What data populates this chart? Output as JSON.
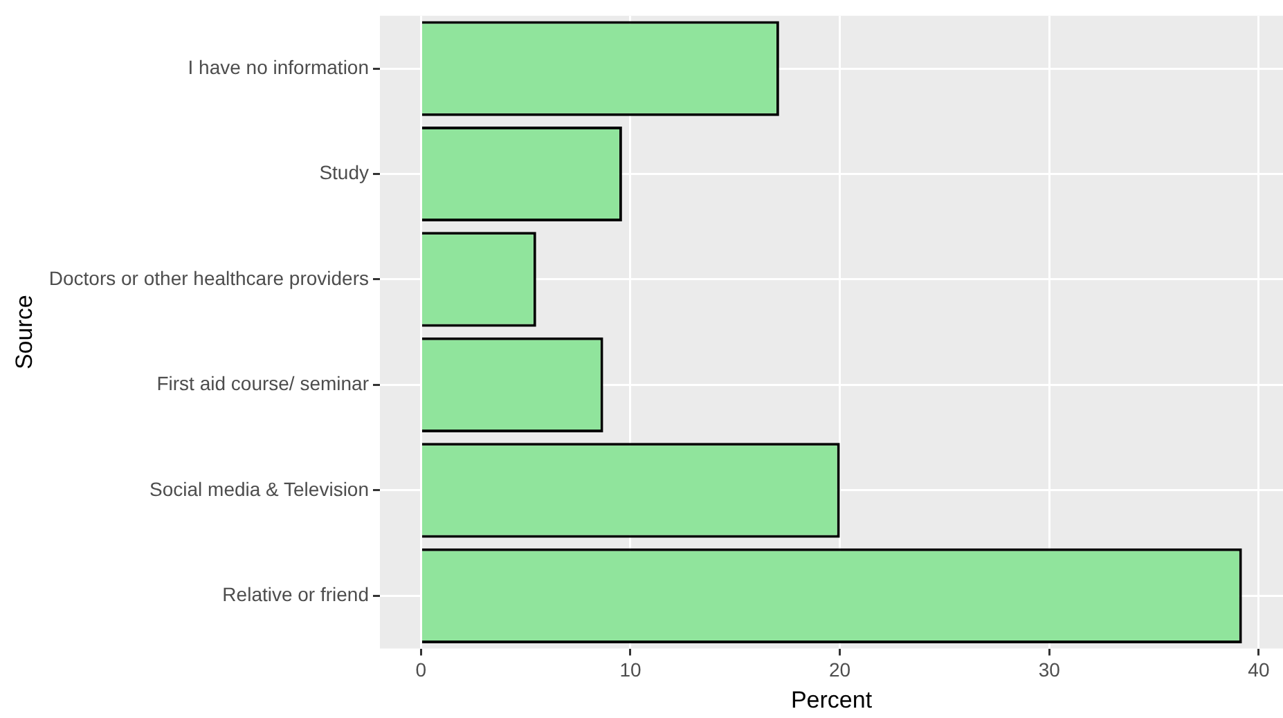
{
  "chart_data": {
    "type": "bar",
    "orientation": "horizontal",
    "xlabel": "Percent",
    "ylabel": "Source",
    "categories": [
      "I have no information",
      "Study",
      "Doctors or other healthcare providers",
      "First aid course/ seminar",
      "Social media & Television",
      "Relative or friend"
    ],
    "values": [
      17.1,
      9.6,
      5.5,
      8.7,
      20.0,
      39.2
    ],
    "color": "#90e49c",
    "xlim": [
      -1.96,
      41.16
    ],
    "xticks": [
      0,
      10,
      20,
      30,
      40
    ],
    "grid": true,
    "legend": false
  }
}
